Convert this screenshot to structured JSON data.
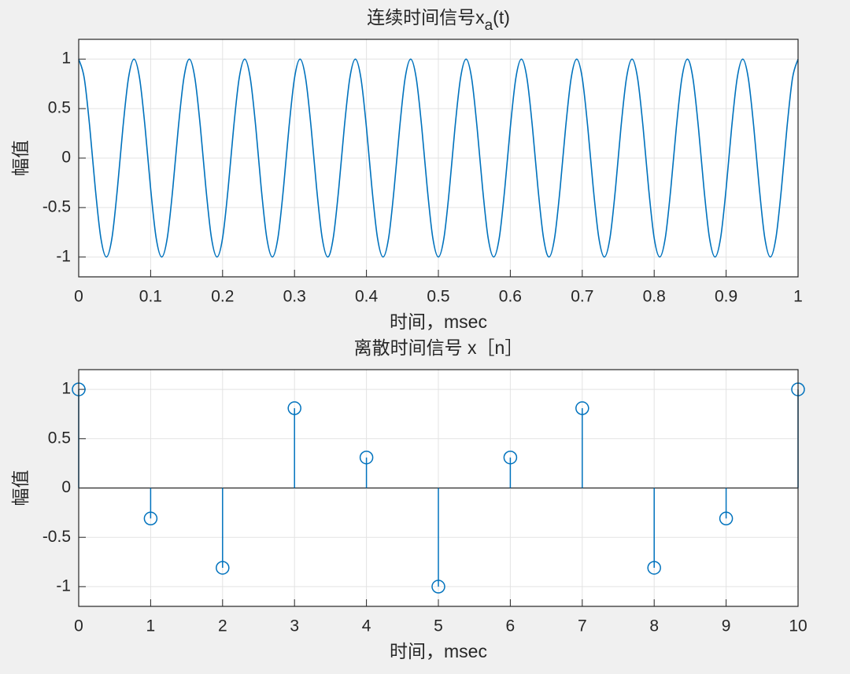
{
  "chart_data": [
    {
      "type": "line",
      "title_parts": [
        "连续时间信号x",
        "a",
        "(t)"
      ],
      "xlabel": "时间，msec",
      "ylabel": "幅值",
      "color": "#0072bd",
      "grid": true,
      "xlim": [
        0,
        1
      ],
      "ylim": [
        -1.2,
        1.2
      ],
      "xticks": [
        0,
        0.1,
        0.2,
        0.3,
        0.4,
        0.5,
        0.6,
        0.7,
        0.8,
        0.9,
        1
      ],
      "yticks": [
        -1,
        -0.5,
        0,
        0.5,
        1
      ],
      "x": [
        0,
        0.0077,
        0.0154,
        0.0231,
        0.0308,
        0.0385,
        0.0462,
        0.0538,
        0.0615,
        0.0692,
        0.0769,
        0.0846,
        0.0923,
        0.1,
        0.1077,
        0.1154,
        0.1231,
        0.1308,
        0.1385,
        0.1462,
        0.1538,
        0.1615,
        0.1692,
        0.1769,
        0.1846,
        0.1923,
        0.2,
        0.2077,
        0.2154,
        0.2231,
        0.2308,
        0.2385,
        0.2462,
        0.2538,
        0.2615,
        0.2692,
        0.2769,
        0.2846,
        0.2923,
        0.3,
        0.3077,
        0.3154,
        0.3231,
        0.3308,
        0.3385,
        0.3462,
        0.3538,
        0.3615,
        0.3692,
        0.3769,
        0.3846,
        0.3923,
        0.4,
        0.4077,
        0.4154,
        0.4231,
        0.4308,
        0.4385,
        0.4462,
        0.4538,
        0.4615,
        0.4692,
        0.4769,
        0.4846,
        0.4923,
        0.5,
        0.5077,
        0.5154,
        0.5231,
        0.5308,
        0.5385,
        0.5462,
        0.5538,
        0.5615,
        0.5692,
        0.5769,
        0.5846,
        0.5923,
        0.6,
        0.6077,
        0.6154,
        0.6231,
        0.6308,
        0.6385,
        0.6462,
        0.6538,
        0.6615,
        0.6692,
        0.6769,
        0.6846,
        0.6923,
        0.7,
        0.7077,
        0.7154,
        0.7231,
        0.7308,
        0.7385,
        0.7462,
        0.7538,
        0.7615,
        0.7692,
        0.7769,
        0.7846,
        0.7923,
        0.8,
        0.8077,
        0.8154,
        0.8231,
        0.8308,
        0.8385,
        0.8462,
        0.8538,
        0.8615,
        0.8692,
        0.8769,
        0.8846,
        0.8923,
        0.9,
        0.9077,
        0.9154,
        0.9231,
        0.9308,
        0.9385,
        0.9462,
        0.9538,
        0.9615,
        0.9692,
        0.9769,
        0.9846,
        0.9923,
        1
      ],
      "values": [
        1,
        0.809,
        0.309,
        -0.309,
        -0.809,
        -1,
        -0.809,
        -0.309,
        0.309,
        0.809,
        1,
        0.809,
        0.309,
        -0.309,
        -0.809,
        -1,
        -0.809,
        -0.309,
        0.309,
        0.809,
        1,
        0.809,
        0.309,
        -0.309,
        -0.809,
        -1,
        -0.809,
        -0.309,
        0.309,
        0.809,
        1,
        0.809,
        0.309,
        -0.309,
        -0.809,
        -1,
        -0.809,
        -0.309,
        0.309,
        0.809,
        1,
        0.809,
        0.309,
        -0.309,
        -0.809,
        -1,
        -0.809,
        -0.309,
        0.309,
        0.809,
        1,
        0.809,
        0.309,
        -0.309,
        -0.809,
        -1,
        -0.809,
        -0.309,
        0.309,
        0.809,
        1,
        0.809,
        0.309,
        -0.309,
        -0.809,
        -1,
        -0.809,
        -0.309,
        0.309,
        0.809,
        1,
        0.809,
        0.309,
        -0.309,
        -0.809,
        -1,
        -0.809,
        -0.309,
        0.309,
        0.809,
        1,
        0.809,
        0.309,
        -0.309,
        -0.809,
        -1,
        -0.809,
        -0.309,
        0.309,
        0.809,
        1,
        0.809,
        0.309,
        -0.309,
        -0.809,
        -1,
        -0.809,
        -0.309,
        0.309,
        0.809,
        1,
        0.809,
        0.309,
        -0.309,
        -0.809,
        -1,
        -0.809,
        -0.309,
        0.309,
        0.809,
        1,
        0.809,
        0.309,
        -0.309,
        -0.809,
        -1,
        -0.809,
        -0.309,
        0.309,
        0.809,
        1,
        0.809,
        0.309,
        -0.309,
        -0.809,
        -1,
        -0.809,
        -0.309,
        0.309,
        0.809,
        1
      ]
    },
    {
      "type": "stem",
      "title_parts": [
        "离散时间信号 x［n］"
      ],
      "xlabel": "时间，msec",
      "ylabel": "幅值",
      "color": "#0072bd",
      "grid": true,
      "xlim": [
        0,
        10
      ],
      "ylim": [
        -1.2,
        1.2
      ],
      "xticks": [
        0,
        1,
        2,
        3,
        4,
        5,
        6,
        7,
        8,
        9,
        10
      ],
      "yticks": [
        -1,
        -0.5,
        0,
        0.5,
        1
      ],
      "x": [
        0,
        1,
        2,
        3,
        4,
        5,
        6,
        7,
        8,
        9,
        10
      ],
      "values": [
        1,
        -0.309,
        -0.809,
        0.809,
        0.309,
        -1,
        0.309,
        0.809,
        -0.809,
        -0.309,
        1
      ]
    }
  ]
}
